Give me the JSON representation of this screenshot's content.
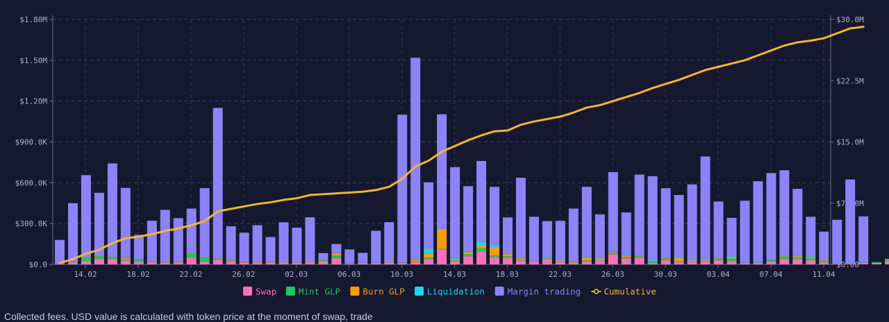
{
  "chart_data": {
    "type": "bar",
    "stacked": true,
    "x_tick_labels": [
      "14.02",
      "18.02",
      "22.02",
      "26.02",
      "02.03",
      "06.03",
      "10.03",
      "14.03",
      "18.03",
      "22.03",
      "26.03",
      "30.03",
      "03.04",
      "07.04",
      "11.04"
    ],
    "y_left": {
      "min": 0,
      "max": 1800000,
      "tick_labels": [
        "$0.0",
        "$300.0K",
        "$600.0K",
        "$900.0K",
        "$1.20M",
        "$1.50M",
        "$1.80M"
      ]
    },
    "y_right": {
      "min": 0,
      "max": 30000000,
      "tick_labels": [
        "$0.00",
        "$7.50M",
        "$15.0M",
        "$22.5M",
        "$30.0M"
      ]
    },
    "grid": true,
    "legend_position": "bottom",
    "colors": {
      "Swap": "#f472b6",
      "Mint GLP": "#22c55e",
      "Burn GLP": "#f59e0b",
      "Liquidation": "#22d3ee",
      "Margin trading": "#8b83f7",
      "Cumulative": "#f2b632"
    },
    "series": [
      {
        "name": "Swap",
        "values": [
          5000,
          15000,
          25000,
          40000,
          40000,
          30000,
          20000,
          15000,
          15000,
          15000,
          50000,
          20000,
          35000,
          25000,
          15000,
          15000,
          15000,
          15000,
          15000,
          15000,
          25000,
          45000,
          5000,
          10000,
          10000,
          15000,
          10000,
          20000,
          40000,
          110000,
          25000,
          60000,
          95000,
          55000,
          50000,
          30000,
          20000,
          40000,
          20000,
          10000,
          25000,
          30000,
          75000,
          45000,
          50000,
          10000,
          30000,
          20000,
          20000,
          25000,
          30000,
          25000,
          10000,
          10000,
          20000,
          40000,
          40000,
          30000,
          15000,
          5000,
          5000,
          10000,
          10000,
          25000,
          15000
        ]
      },
      {
        "name": "Mint GLP",
        "values": [
          1000,
          3000,
          25000,
          20000,
          10000,
          5000,
          15000,
          2000,
          5000,
          3000,
          30000,
          30000,
          5000,
          5000,
          1000,
          3000,
          4000,
          5000,
          5000,
          3000,
          5000,
          20000,
          1000,
          1000,
          1000,
          5000,
          2000,
          5000,
          10000,
          5000,
          5000,
          15000,
          25000,
          10000,
          10000,
          5000,
          1000,
          5000,
          3000,
          1000,
          5000,
          3000,
          10000,
          10000,
          10000,
          10000,
          10000,
          5000,
          3000,
          3000,
          10000,
          15000,
          1000,
          3000,
          10000,
          15000,
          10000,
          15000,
          10000,
          3000,
          1000,
          1000,
          5000,
          5000,
          2000
        ]
      },
      {
        "name": "Burn GLP",
        "values": [
          1000,
          1000,
          5000,
          5000,
          5000,
          10000,
          3000,
          5000,
          3000,
          3000,
          5000,
          5000,
          3000,
          5000,
          3000,
          3000,
          1000,
          5000,
          3000,
          5000,
          3000,
          15000,
          1000,
          1000,
          1000,
          5000,
          1000,
          10000,
          30000,
          140000,
          10000,
          15000,
          20000,
          60000,
          15000,
          10000,
          5000,
          5000,
          5000,
          5000,
          20000,
          10000,
          5000,
          10000,
          5000,
          5000,
          5000,
          20000,
          5000,
          5000,
          5000,
          5000,
          1000,
          1000,
          1000,
          5000,
          10000,
          10000,
          5000,
          1000,
          1000,
          1000,
          1000,
          5000,
          5000
        ]
      },
      {
        "name": "Liquidation",
        "values": [
          1000,
          1000,
          1000,
          1000,
          2000,
          2000,
          1000,
          1000,
          1000,
          1000,
          1000,
          1000,
          1000,
          1000,
          1000,
          1000,
          1000,
          1000,
          1000,
          1000,
          1000,
          5000,
          1000,
          1000,
          1000,
          1000,
          1000,
          2000,
          35000,
          5000,
          5000,
          5000,
          25000,
          15000,
          5000,
          2000,
          1000,
          5000,
          3000,
          2000,
          3000,
          3000,
          3000,
          5000,
          3000,
          3000,
          2000,
          10000,
          5000,
          5000,
          5000,
          15000,
          1000,
          1000,
          1000,
          5000,
          5000,
          5000,
          5000,
          1000,
          1000,
          1000,
          1000,
          5000,
          5000
        ]
      },
      {
        "name": "Margin trading",
        "values": [
          172000,
          430000,
          600000,
          460000,
          685000,
          515000,
          178000,
          298000,
          377000,
          318000,
          324000,
          504000,
          1106000,
          244000,
          213000,
          266000,
          180000,
          283000,
          246000,
          322000,
          49000,
          65000,
          102000,
          72000,
          234000,
          284000,
          1086000,
          1481000,
          488000,
          843000,
          670000,
          480000,
          595000,
          430000,
          265000,
          590000,
          323000,
          263000,
          289000,
          392000,
          517000,
          322000,
          585000,
          312000,
          592000,
          620000,
          513000,
          455000,
          555000,
          755000,
          412000,
          282000,
          455000,
          596000,
          639000,
          627000,
          490000,
          290000,
          206000,
          318000,
          616000,
          340000,
          0,
          0,
          0
        ]
      },
      {
        "name": "Cumulative",
        "values": [
          180000,
          650000,
          1300000,
          1800000,
          2600000,
          3200000,
          3400000,
          3700000,
          4100000,
          4400000,
          4800000,
          5300000,
          6500000,
          6800000,
          7100000,
          7400000,
          7600000,
          7900000,
          8100000,
          8500000,
          8600000,
          8700000,
          8800000,
          8900000,
          9100000,
          9500000,
          10500000,
          12000000,
          12700000,
          13800000,
          14500000,
          15200000,
          15800000,
          16300000,
          16400000,
          17100000,
          17500000,
          17800000,
          18100000,
          18600000,
          19200000,
          19500000,
          20000000,
          20500000,
          21000000,
          21600000,
          22100000,
          22600000,
          23200000,
          23800000,
          24200000,
          24600000,
          25000000,
          25600000,
          26200000,
          26800000,
          27200000,
          27400000,
          27700000,
          28300000,
          28900000,
          29100000
        ]
      }
    ]
  },
  "footnote": "Collected fees. USD value is calculated with token price at the moment of swap, trade"
}
